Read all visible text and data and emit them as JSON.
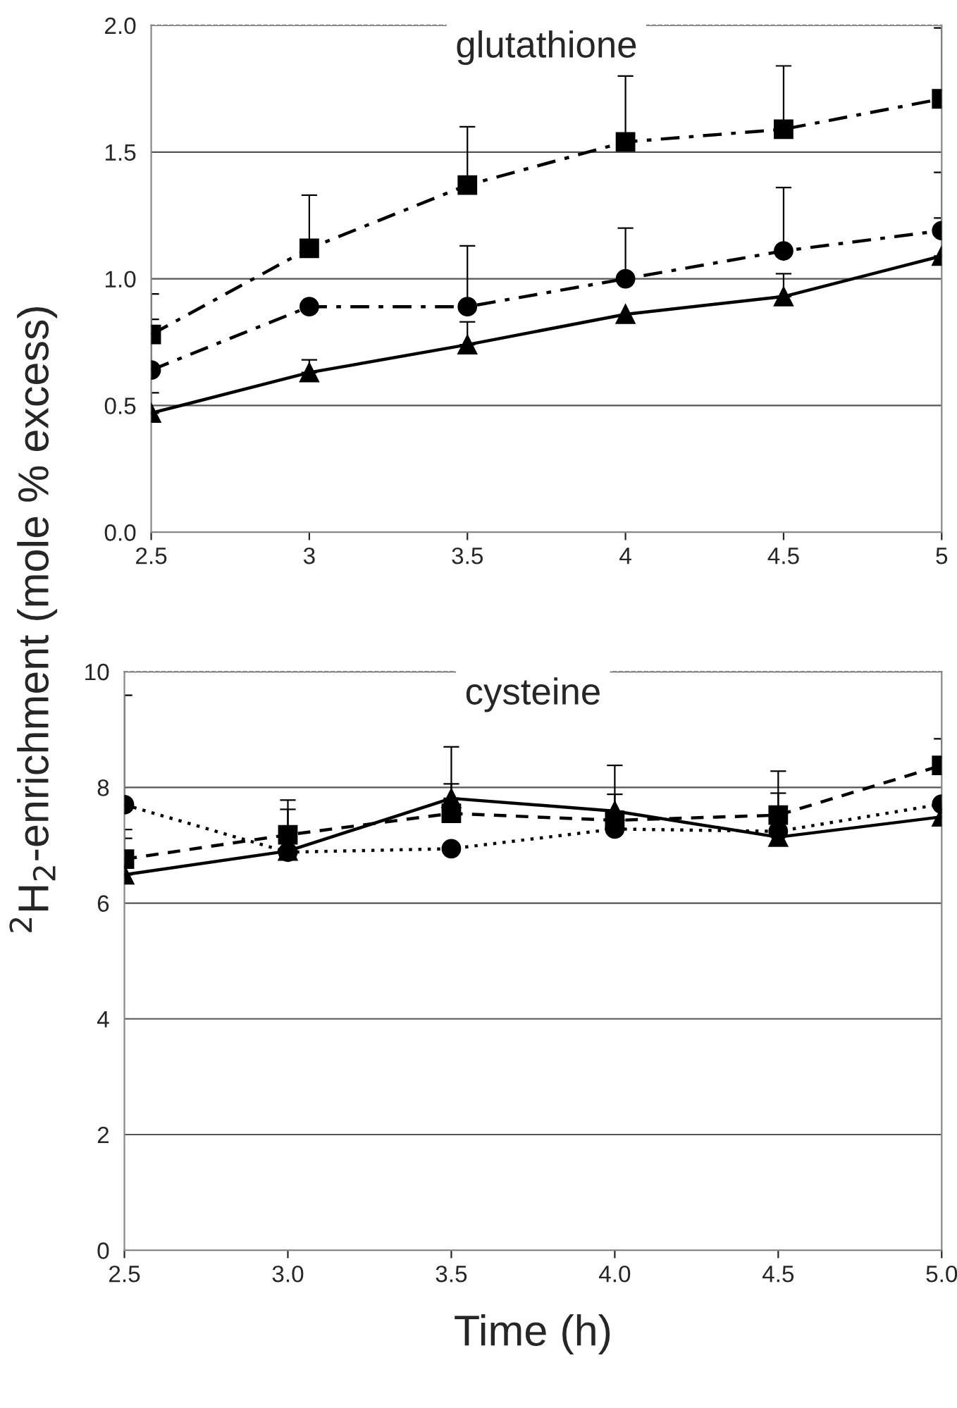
{
  "chart_data": [
    {
      "type": "line",
      "title": "glutathione",
      "x": [
        2.5,
        3,
        3.5,
        4,
        4.5,
        5
      ],
      "xlim": [
        2.5,
        5
      ],
      "xticks": [
        2.5,
        3,
        3.5,
        4,
        4.5,
        5
      ],
      "ylim": [
        0,
        2
      ],
      "yticks": [
        {
          "value": 0,
          "label": "0.0"
        },
        0.5,
        {
          "value": 1,
          "label": "1.0"
        },
        1.5,
        {
          "value": 2,
          "label": "2.0"
        }
      ],
      "grid": "y",
      "series": [
        {
          "color": "#000000",
          "marker": "square",
          "line_style": "dashdot",
          "values": [
            0.78,
            1.12,
            1.37,
            1.54,
            1.59,
            1.71
          ],
          "errors": [
            [
              0.78,
              0.94
            ],
            [
              1.12,
              1.33
            ],
            [
              1.37,
              1.6
            ],
            [
              1.54,
              1.8
            ],
            [
              1.59,
              1.84
            ],
            [
              1.71,
              1.99
            ]
          ]
        },
        {
          "color": "#000000",
          "marker": "circle",
          "line_style": "dashdot",
          "values": [
            0.64,
            0.89,
            0.89,
            1.0,
            1.11,
            1.19
          ],
          "errors": [
            [
              0.64,
              0.84
            ],
            null,
            [
              0.89,
              1.13
            ],
            [
              1.0,
              1.2
            ],
            [
              1.11,
              1.36
            ],
            [
              1.19,
              1.42
            ]
          ]
        },
        {
          "color": "#000000",
          "marker": "triangle",
          "line_style": "solid",
          "values": [
            0.47,
            0.63,
            0.74,
            0.86,
            0.93,
            1.09
          ],
          "errors": [
            [
              0.47,
              0.55
            ],
            [
              0.63,
              0.68
            ],
            [
              0.74,
              0.83
            ],
            null,
            [
              0.93,
              1.02
            ],
            [
              1.09,
              1.24
            ]
          ]
        }
      ]
    },
    {
      "type": "line",
      "title": "cysteine",
      "xlabel": "Time (h)",
      "ylabel": "$^{2}$H$_{2}$-enrichment (mole % excess)",
      "x": [
        2.5,
        3,
        3.5,
        4,
        4.5,
        5
      ],
      "xlim": [
        2.5,
        5
      ],
      "xticks": [
        2.5,
        {
          "value": 3,
          "label": "3.0"
        },
        3.5,
        {
          "value": 4,
          "label": "4.0"
        },
        4.5,
        {
          "value": 5,
          "label": "5.0"
        }
      ],
      "ylim": [
        0,
        10
      ],
      "yticks": [
        0,
        2,
        4,
        6,
        8,
        10
      ],
      "grid": "y",
      "series": [
        {
          "color": "#000000",
          "marker": "square",
          "line_style": "dashed",
          "values": [
            6.76,
            7.18,
            7.55,
            7.43,
            7.52,
            8.38
          ],
          "errors": [
            [
              6.76,
              7.27
            ],
            [
              7.18,
              7.78
            ],
            [
              7.55,
              8.06
            ],
            [
              7.43,
              7.88
            ],
            [
              7.52,
              8.28
            ],
            [
              8.38,
              8.84
            ]
          ]
        },
        {
          "color": "#000000",
          "marker": "circle",
          "line_style": "dotted",
          "values": [
            7.7,
            6.88,
            6.94,
            7.28,
            7.24,
            7.71
          ],
          "errors": [
            [
              7.7,
              9.59
            ],
            [
              6.88,
              7.62
            ],
            null,
            null,
            [
              7.24,
              7.9
            ],
            null
          ]
        },
        {
          "color": "#000000",
          "marker": "triangle",
          "line_style": "solid",
          "values": [
            6.49,
            6.9,
            7.81,
            7.59,
            7.14,
            7.49
          ],
          "errors": [
            [
              6.49,
              7.12
            ],
            null,
            [
              7.81,
              8.7
            ],
            [
              7.59,
              8.38
            ],
            null,
            null
          ]
        }
      ]
    }
  ]
}
